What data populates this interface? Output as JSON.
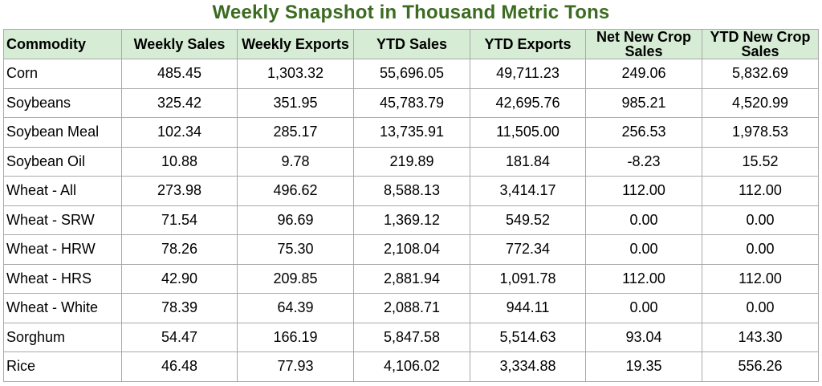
{
  "chart_data": {
    "type": "table",
    "title": "Weekly Snapshot in Thousand Metric Tons",
    "columns": [
      "Commodity",
      "Weekly Sales",
      "Weekly Exports",
      "YTD Sales",
      "YTD Exports",
      "Net New Crop Sales",
      "YTD New Crop Sales"
    ],
    "rows": [
      [
        "Corn",
        "485.45",
        "1,303.32",
        "55,696.05",
        "49,711.23",
        "249.06",
        "5,832.69"
      ],
      [
        "Soybeans",
        "325.42",
        "351.95",
        "45,783.79",
        "42,695.76",
        "985.21",
        "4,520.99"
      ],
      [
        "Soybean Meal",
        "102.34",
        "285.17",
        "13,735.91",
        "11,505.00",
        "256.53",
        "1,978.53"
      ],
      [
        "Soybean Oil",
        "10.88",
        "9.78",
        "219.89",
        "181.84",
        "-8.23",
        "15.52"
      ],
      [
        "Wheat - All",
        "273.98",
        "496.62",
        "8,588.13",
        "3,414.17",
        "112.00",
        "112.00"
      ],
      [
        "Wheat - SRW",
        "71.54",
        "96.69",
        "1,369.12",
        "549.52",
        "0.00",
        "0.00"
      ],
      [
        "Wheat - HRW",
        "78.26",
        "75.30",
        "2,108.04",
        "772.34",
        "0.00",
        "0.00"
      ],
      [
        "Wheat - HRS",
        "42.90",
        "209.85",
        "2,881.94",
        "1,091.78",
        "112.00",
        "112.00"
      ],
      [
        "Wheat - White",
        "78.39",
        "64.39",
        "2,088.71",
        "944.11",
        "0.00",
        "0.00"
      ],
      [
        "Sorghum",
        "54.47",
        "166.19",
        "5,847.58",
        "5,514.63",
        "93.04",
        "143.30"
      ],
      [
        "Rice",
        "46.48",
        "77.93",
        "4,106.02",
        "3,334.88",
        "19.35",
        "556.26"
      ]
    ],
    "colors": {
      "title": "#3c6b22",
      "header_background": "#d6ecd5",
      "grid": "#a9a9a9"
    }
  }
}
